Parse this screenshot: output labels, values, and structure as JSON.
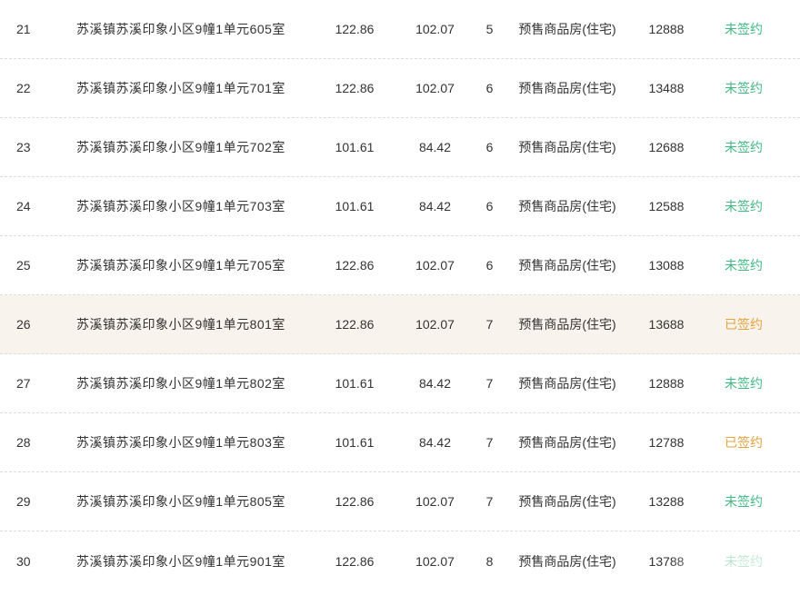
{
  "table": {
    "colors": {
      "text": "#333333",
      "divider": "#dddddd",
      "row_highlight_bg": "#f8f3ec",
      "unsigned": "#42b983",
      "signed": "#e6a23c"
    },
    "rows": [
      {
        "index": "21",
        "address": "苏溪镇苏溪印象小区9幢1单元605室",
        "area": "122.86",
        "inner_area": "102.07",
        "floor": "5",
        "type": "预售商品房(住宅)",
        "price": "12888",
        "status": "未签约",
        "status_type": "unsigned",
        "highlighted": false
      },
      {
        "index": "22",
        "address": "苏溪镇苏溪印象小区9幢1单元701室",
        "area": "122.86",
        "inner_area": "102.07",
        "floor": "6",
        "type": "预售商品房(住宅)",
        "price": "13488",
        "status": "未签约",
        "status_type": "unsigned",
        "highlighted": false
      },
      {
        "index": "23",
        "address": "苏溪镇苏溪印象小区9幢1单元702室",
        "area": "101.61",
        "inner_area": "84.42",
        "floor": "6",
        "type": "预售商品房(住宅)",
        "price": "12688",
        "status": "未签约",
        "status_type": "unsigned",
        "highlighted": false
      },
      {
        "index": "24",
        "address": "苏溪镇苏溪印象小区9幢1单元703室",
        "area": "101.61",
        "inner_area": "84.42",
        "floor": "6",
        "type": "预售商品房(住宅)",
        "price": "12588",
        "status": "未签约",
        "status_type": "unsigned",
        "highlighted": false
      },
      {
        "index": "25",
        "address": "苏溪镇苏溪印象小区9幢1单元705室",
        "area": "122.86",
        "inner_area": "102.07",
        "floor": "6",
        "type": "预售商品房(住宅)",
        "price": "13088",
        "status": "未签约",
        "status_type": "unsigned",
        "highlighted": false
      },
      {
        "index": "26",
        "address": "苏溪镇苏溪印象小区9幢1单元801室",
        "area": "122.86",
        "inner_area": "102.07",
        "floor": "7",
        "type": "预售商品房(住宅)",
        "price": "13688",
        "status": "已签约",
        "status_type": "signed",
        "highlighted": true
      },
      {
        "index": "27",
        "address": "苏溪镇苏溪印象小区9幢1单元802室",
        "area": "101.61",
        "inner_area": "84.42",
        "floor": "7",
        "type": "预售商品房(住宅)",
        "price": "12888",
        "status": "未签约",
        "status_type": "unsigned",
        "highlighted": false
      },
      {
        "index": "28",
        "address": "苏溪镇苏溪印象小区9幢1单元803室",
        "area": "101.61",
        "inner_area": "84.42",
        "floor": "7",
        "type": "预售商品房(住宅)",
        "price": "12788",
        "status": "已签约",
        "status_type": "signed",
        "highlighted": false
      },
      {
        "index": "29",
        "address": "苏溪镇苏溪印象小区9幢1单元805室",
        "area": "122.86",
        "inner_area": "102.07",
        "floor": "7",
        "type": "预售商品房(住宅)",
        "price": "13288",
        "status": "未签约",
        "status_type": "unsigned",
        "highlighted": false
      },
      {
        "index": "30",
        "address": "苏溪镇苏溪印象小区9幢1单元901室",
        "area": "122.86",
        "inner_area": "102.07",
        "floor": "8",
        "type": "预售商品房(住宅)",
        "price": "13788",
        "status": "未签约",
        "status_type": "unsigned",
        "highlighted": false
      }
    ]
  }
}
